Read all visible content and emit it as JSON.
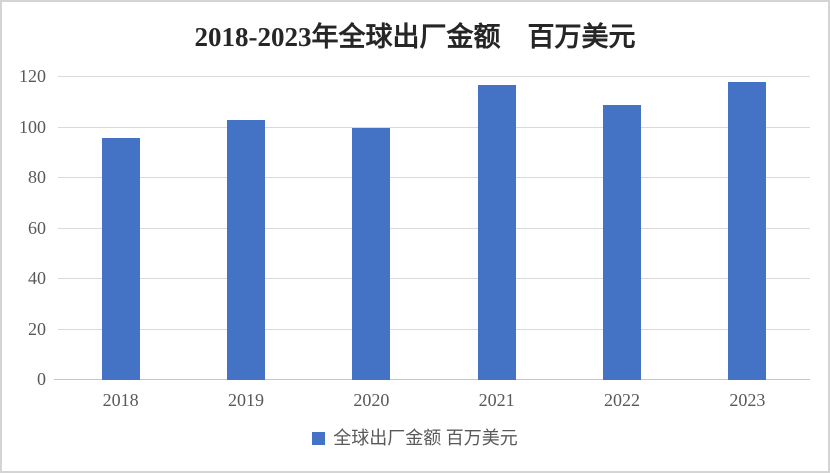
{
  "chart_data": {
    "type": "bar",
    "title": "2018-2023年全球出厂金额　百万美元",
    "categories": [
      "2018",
      "2019",
      "2020",
      "2021",
      "2022",
      "2023"
    ],
    "values": [
      96,
      103,
      100,
      117,
      109,
      118
    ],
    "series": [
      {
        "name": "全球出厂金额 百万美元",
        "values": [
          96,
          103,
          100,
          117,
          109,
          118
        ]
      }
    ],
    "xlabel": "",
    "ylabel": "",
    "ylim": [
      0,
      120
    ],
    "yticks": [
      0,
      20,
      40,
      60,
      80,
      100,
      120
    ],
    "grid": true,
    "legend_position": "bottom",
    "colors": {
      "bar": "#4472C4",
      "gridline": "#d9d9d9",
      "axis_line": "#c6c6c6",
      "tick_text": "#595959",
      "title_text": "#262626",
      "frame_border": "#d4d4d4",
      "background": "#ffffff"
    }
  }
}
